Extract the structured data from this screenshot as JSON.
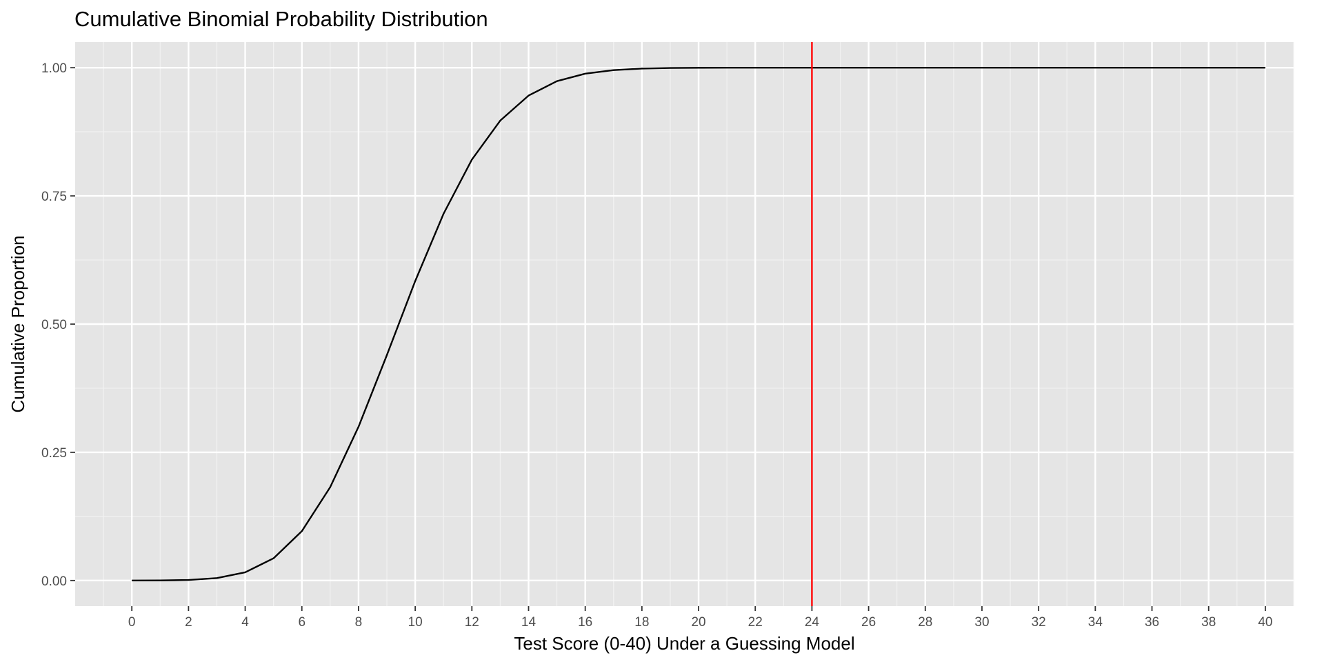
{
  "chart_data": {
    "type": "line",
    "title": "Cumulative Binomial Probability Distribution",
    "xlabel": "Test Score (0-40) Under a Guessing Model",
    "ylabel": "Cumulative Proportion",
    "xlim": [
      -2,
      41
    ],
    "ylim": [
      -0.05,
      1.05
    ],
    "x_ticks": [
      0,
      2,
      4,
      6,
      8,
      10,
      12,
      14,
      16,
      18,
      20,
      22,
      24,
      26,
      28,
      30,
      32,
      34,
      36,
      38,
      40
    ],
    "y_ticks": [
      0.0,
      0.25,
      0.5,
      0.75,
      1.0
    ],
    "y_tick_labels": [
      "0.00",
      "0.25",
      "0.50",
      "0.75",
      "1.00"
    ],
    "grid": true,
    "panel_background": "#e5e5e5",
    "series": [
      {
        "color": "#000000",
        "x": [
          0,
          1,
          2,
          3,
          4,
          5,
          6,
          7,
          8,
          9,
          10,
          11,
          12,
          13,
          14,
          15,
          16,
          17,
          18,
          19,
          20,
          21,
          22,
          23,
          24,
          25,
          26,
          27,
          28,
          29,
          30,
          31,
          32,
          33,
          34,
          35,
          36,
          37,
          38,
          39,
          40
        ],
        "values": [
          0.0,
          0.0001,
          0.001,
          0.0047,
          0.016,
          0.0433,
          0.0962,
          0.182,
          0.2998,
          0.4395,
          0.5839,
          0.7151,
          0.8209,
          0.8968,
          0.9456,
          0.9738,
          0.9884,
          0.9953,
          0.9983,
          0.9994,
          0.9998,
          1.0,
          1.0,
          1.0,
          1.0,
          1.0,
          1.0,
          1.0,
          1.0,
          1.0,
          1.0,
          1.0,
          1.0,
          1.0,
          1.0,
          1.0,
          1.0,
          1.0,
          1.0,
          1.0,
          1.0
        ]
      }
    ],
    "reference_line": {
      "orientation": "vertical",
      "x": 24,
      "color": "#ff0000"
    }
  }
}
